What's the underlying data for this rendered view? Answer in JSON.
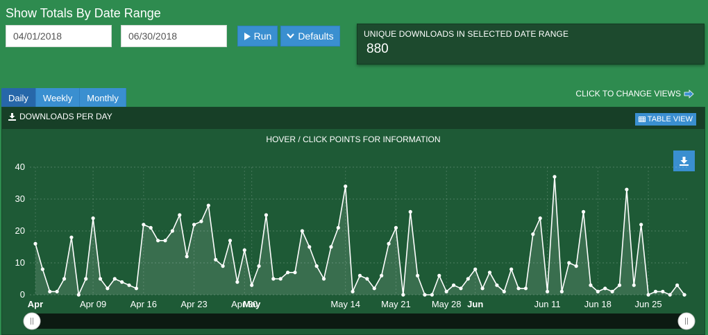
{
  "header": {
    "title": "Show Totals By Date Range"
  },
  "filters": {
    "start_date": "04/01/2018",
    "end_date": "06/30/2018",
    "run_label": "Run",
    "defaults_label": "Defaults"
  },
  "summary": {
    "label": "UNIQUE DOWNLOADS IN SELECTED DATE RANGE",
    "value": "880"
  },
  "view_tabs": [
    {
      "label": "Daily",
      "active": true
    },
    {
      "label": "Weekly",
      "active": false
    },
    {
      "label": "Monthly",
      "active": false
    }
  ],
  "change_views_label": "CLICK TO CHANGE VIEWS",
  "panel": {
    "title": "DOWNLOADS PER DAY",
    "table_view_label": "TABLE VIEW",
    "hint": "HOVER / CLICK POINTS FOR INFORMATION"
  },
  "colors": {
    "background": "#2e8b4f",
    "panel": "#1e5a36",
    "button": "#3a8fd0",
    "line": "#ffffff"
  },
  "icons": {
    "run": "play-icon",
    "defaults": "chevron-down-icon",
    "change_views": "pointer-hand-icon",
    "panel_title": "download-icon",
    "table_view": "table-icon",
    "export": "download-icon"
  },
  "chart_data": {
    "type": "area",
    "title": "",
    "xlabel": "",
    "ylabel": "",
    "ylim": [
      0,
      40
    ],
    "yticks": [
      0,
      10,
      20,
      30,
      40
    ],
    "grid": true,
    "x_start": "2018-04-01",
    "x_end": "2018-06-30",
    "x_ticks": [
      {
        "label": "Apr",
        "date": "2018-04-01",
        "bold": true
      },
      {
        "label": "Apr 09",
        "date": "2018-04-09",
        "bold": false
      },
      {
        "label": "Apr 16",
        "date": "2018-04-16",
        "bold": false
      },
      {
        "label": "Apr 23",
        "date": "2018-04-23",
        "bold": false
      },
      {
        "label": "Apr 30",
        "date": "2018-04-30",
        "bold": false
      },
      {
        "label": "May",
        "date": "2018-05-01",
        "bold": true
      },
      {
        "label": "May 14",
        "date": "2018-05-14",
        "bold": false
      },
      {
        "label": "May 21",
        "date": "2018-05-21",
        "bold": false
      },
      {
        "label": "May 28",
        "date": "2018-05-28",
        "bold": false
      },
      {
        "label": "Jun",
        "date": "2018-06-01",
        "bold": true
      },
      {
        "label": "Jun 11",
        "date": "2018-06-11",
        "bold": false
      },
      {
        "label": "Jun 18",
        "date": "2018-06-18",
        "bold": false
      },
      {
        "label": "Jun 25",
        "date": "2018-06-25",
        "bold": false
      }
    ],
    "series": [
      {
        "values": [
          16,
          8,
          1,
          1,
          5,
          18,
          0,
          5,
          24,
          5,
          2,
          5,
          4,
          3,
          2,
          22,
          21,
          17,
          17,
          20,
          25,
          12,
          22,
          23,
          28,
          11,
          9,
          17,
          4,
          14,
          3,
          9,
          25,
          5,
          5,
          7,
          7,
          20,
          15,
          9,
          5,
          15,
          21,
          34,
          1,
          6,
          5,
          2,
          6,
          16,
          21,
          0,
          26,
          6,
          0,
          0,
          6,
          1,
          3,
          2,
          5,
          8,
          2,
          7,
          3,
          1,
          8,
          2,
          2,
          19,
          24,
          1,
          37,
          1,
          10,
          9,
          26,
          3,
          1,
          2,
          1,
          3,
          33,
          3,
          22,
          0,
          1,
          1,
          0,
          3,
          0
        ]
      }
    ]
  }
}
